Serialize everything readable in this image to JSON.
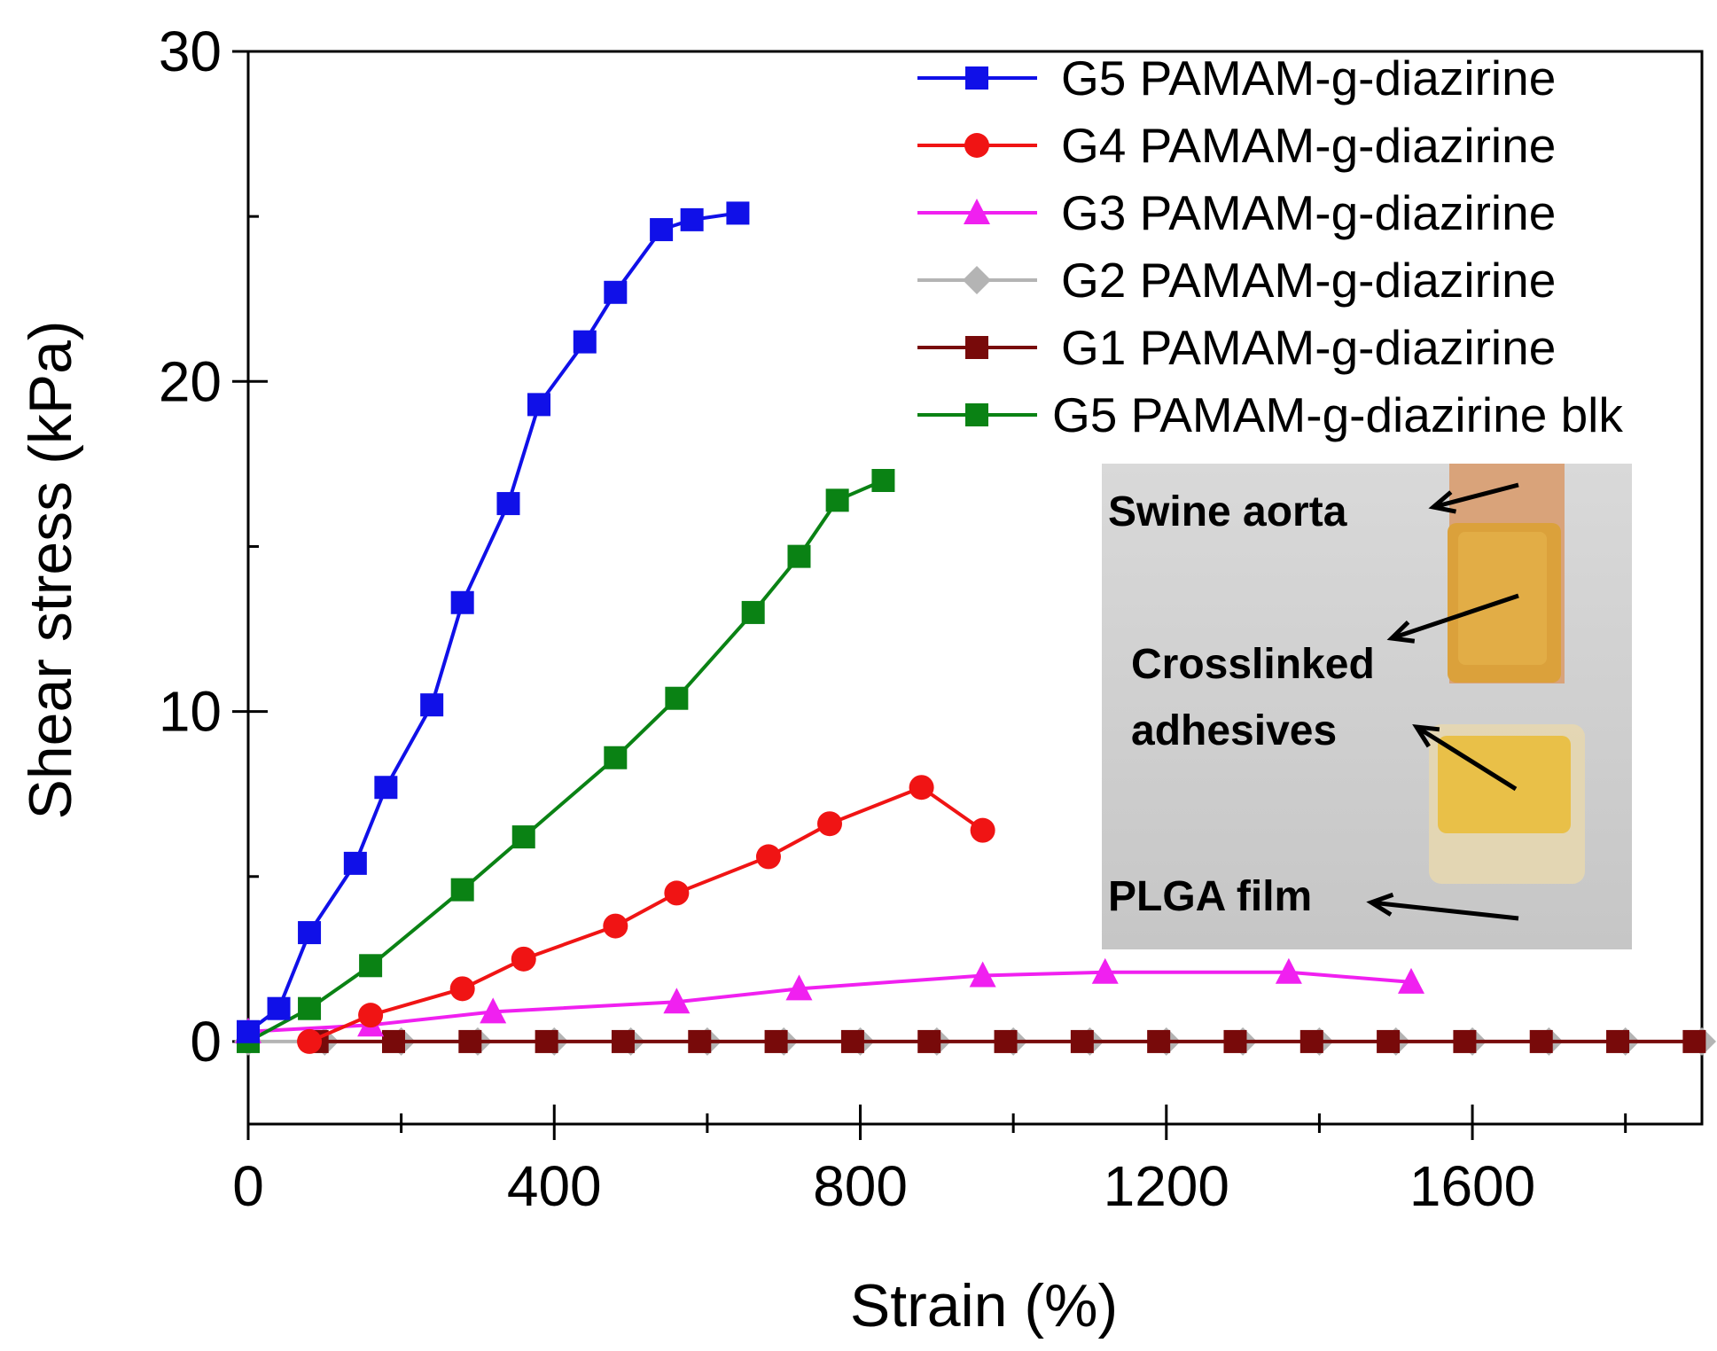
{
  "chart_data": {
    "type": "line",
    "xlabel": "Strain (%)",
    "ylabel": "Shear stress (kPa)",
    "xlim": [
      0,
      1900
    ],
    "ylim": [
      -2.5,
      30
    ],
    "xticks": [
      0,
      400,
      800,
      1200,
      1600
    ],
    "xticks_minor": [
      200,
      600,
      1000,
      1400,
      1800
    ],
    "yticks": [
      0,
      10,
      20,
      30
    ],
    "legend_position": "top-right",
    "series": [
      {
        "name": "G5 PAMAM-g-diazirine",
        "color": "#1010e8",
        "marker": "square",
        "x": [
          0,
          40,
          80,
          140,
          180,
          240,
          280,
          340,
          380,
          440,
          480,
          540,
          580,
          640
        ],
        "y": [
          0.3,
          1.0,
          3.3,
          5.4,
          7.7,
          10.2,
          13.3,
          16.3,
          19.3,
          21.2,
          22.7,
          24.6,
          24.9,
          25.1
        ]
      },
      {
        "name": "G4 PAMAM-g-diazirine",
        "color": "#f01414",
        "marker": "circle",
        "x": [
          80,
          160,
          280,
          360,
          480,
          560,
          680,
          760,
          880,
          960
        ],
        "y": [
          0.0,
          0.8,
          1.6,
          2.5,
          3.5,
          4.5,
          5.6,
          6.6,
          7.7,
          6.4
        ]
      },
      {
        "name": "G3 PAMAM-g-diazirine",
        "color": "#f020f0",
        "marker": "triangle",
        "x": [
          0,
          160,
          320,
          560,
          720,
          960,
          1120,
          1360,
          1520
        ],
        "y": [
          0.3,
          0.5,
          0.9,
          1.2,
          1.6,
          2.0,
          2.1,
          2.1,
          1.8
        ]
      },
      {
        "name": "G2 PAMAM-g-diazirine",
        "color": "#b4b4b4",
        "marker": "diamond",
        "x": [
          0,
          100,
          200,
          300,
          400,
          500,
          600,
          700,
          800,
          900,
          1000,
          1100,
          1200,
          1300,
          1400,
          1500,
          1600,
          1700,
          1800,
          1900
        ],
        "y": [
          0,
          0,
          0,
          0,
          0,
          0,
          0,
          0,
          0,
          0,
          0,
          0,
          0,
          0,
          0,
          0,
          0,
          0,
          0,
          0
        ]
      },
      {
        "name": "G1 PAMAM-g-diazirine",
        "color": "#780a0a",
        "marker": "square",
        "x": [
          90,
          190,
          290,
          390,
          490,
          590,
          690,
          790,
          890,
          990,
          1090,
          1190,
          1290,
          1390,
          1490,
          1590,
          1690,
          1790,
          1890
        ],
        "y": [
          0,
          0,
          0,
          0,
          0,
          0,
          0,
          0,
          0,
          0,
          0,
          0,
          0,
          0,
          0,
          0,
          0,
          0,
          0
        ]
      },
      {
        "name": "G5 PAMAM-g-diazirine blk",
        "color": "#0a8214",
        "marker": "square",
        "x": [
          0,
          80,
          160,
          280,
          360,
          480,
          560,
          660,
          720,
          770,
          830
        ],
        "y": [
          0.0,
          1.0,
          2.3,
          4.6,
          6.2,
          8.6,
          10.4,
          13.0,
          14.7,
          16.4,
          17.0
        ]
      }
    ],
    "inset": {
      "description_labels": [
        "Swine aorta",
        "Crosslinked",
        "adhesives",
        "PLGA film"
      ]
    }
  }
}
